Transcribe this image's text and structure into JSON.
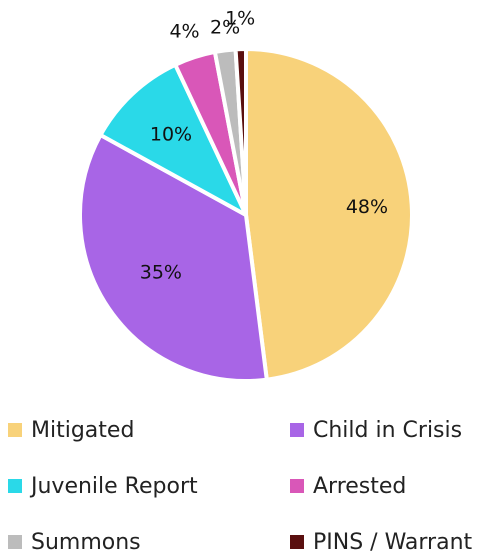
{
  "chart_data": {
    "type": "pie",
    "categories": [
      "Mitigated",
      "Child in Crisis",
      "Juvenile Report",
      "Arrested",
      "Summons",
      "PINS / Warrant"
    ],
    "values": [
      48,
      35,
      10,
      4,
      2,
      1
    ],
    "labels": [
      "48%",
      "35%",
      "10%",
      "4%",
      "2%",
      "1%"
    ],
    "colors": [
      "#f8d27a",
      "#a865e6",
      "#2ad9e8",
      "#d957b8",
      "#bcbcbc",
      "#5a0f0f"
    ],
    "legend_position": "bottom",
    "start_angle": "top, clockwise"
  }
}
